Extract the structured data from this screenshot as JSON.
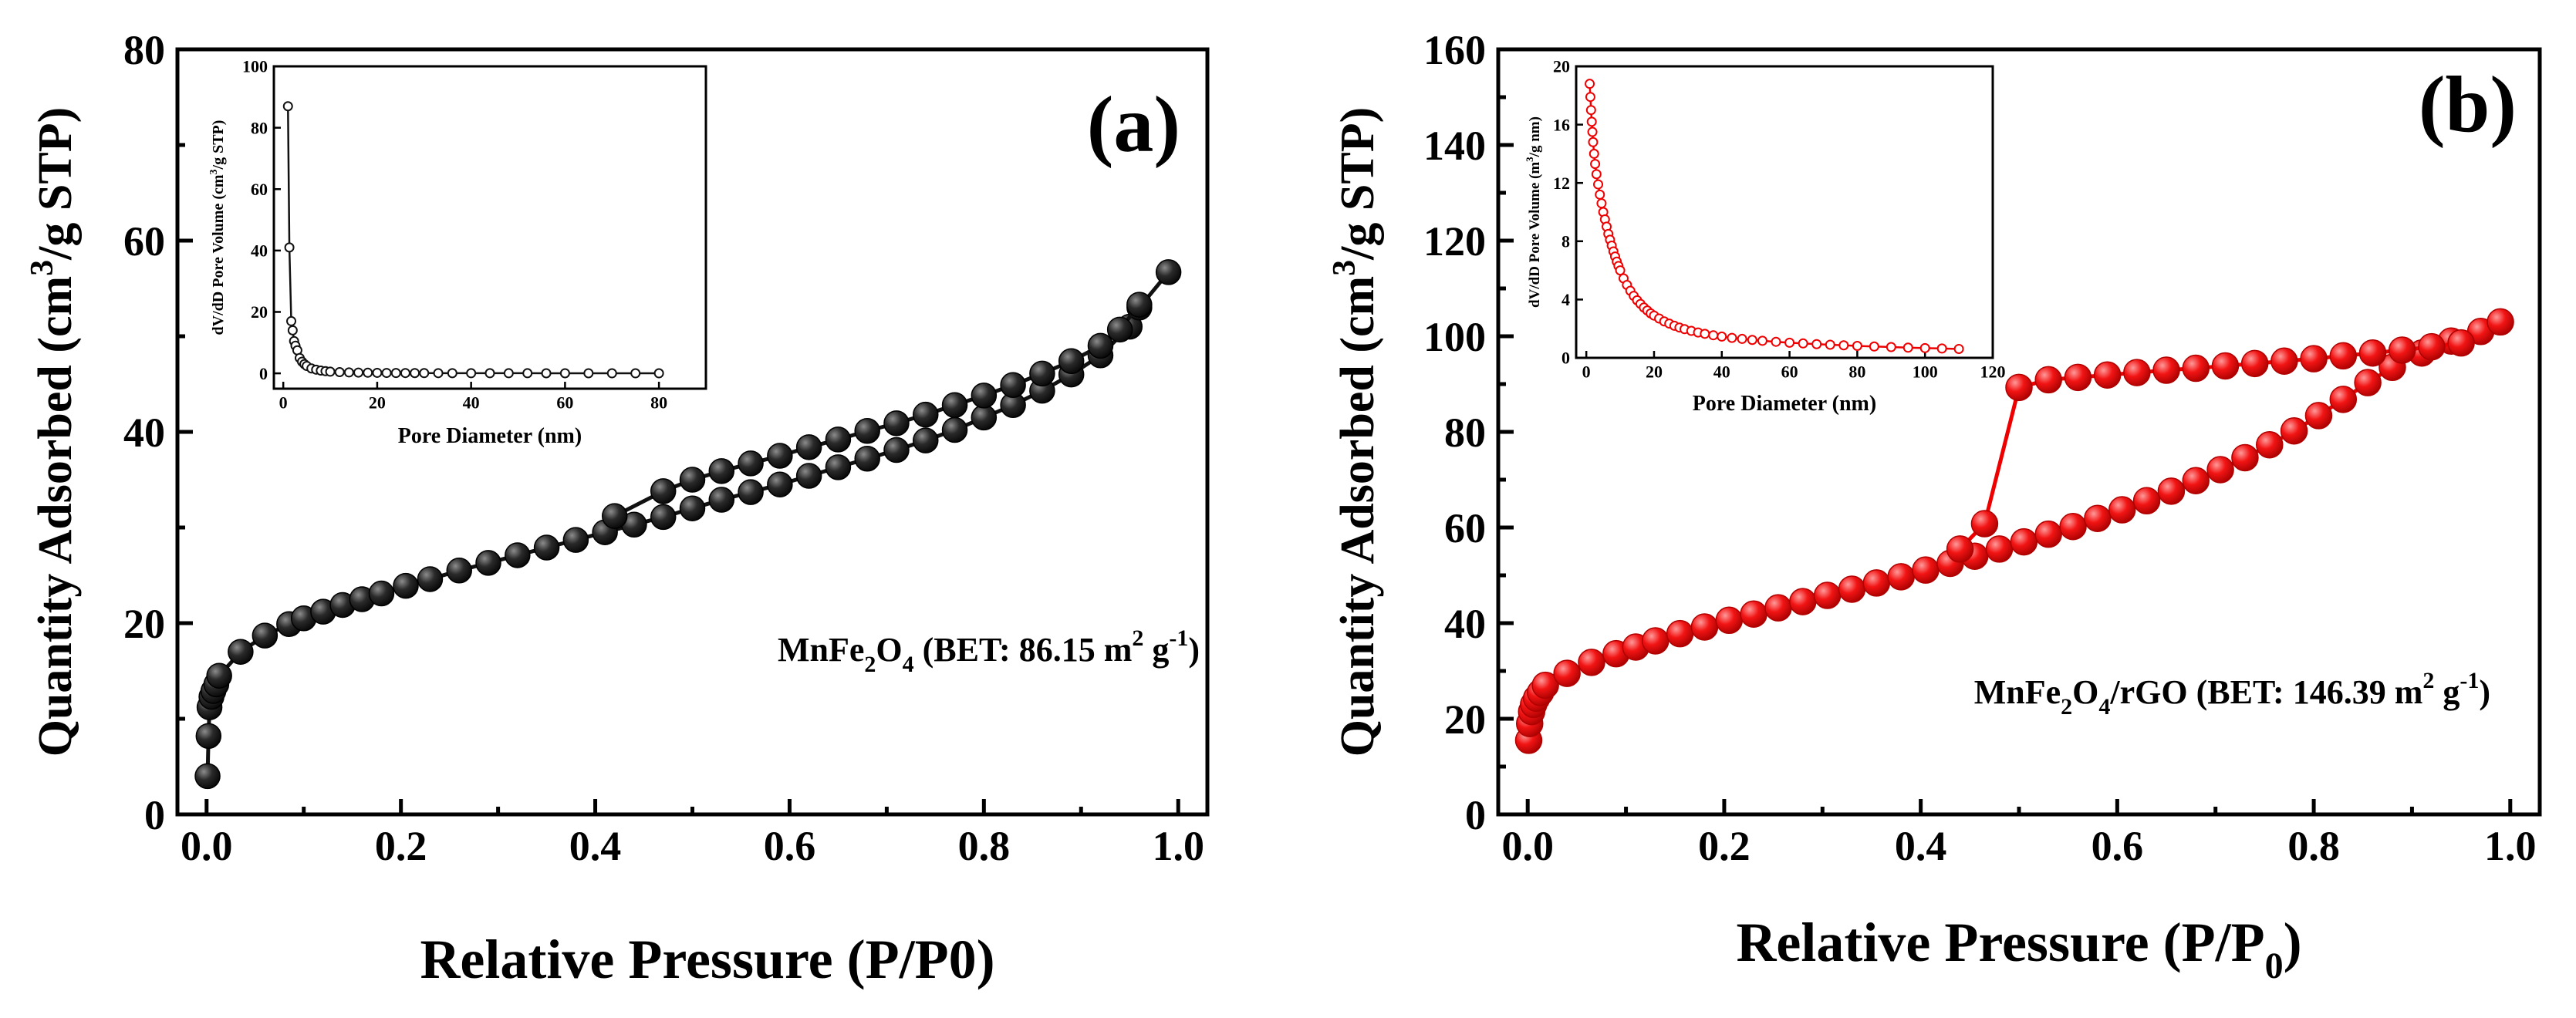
{
  "chart_data": [
    {
      "id": "a",
      "type": "scatter",
      "panel_label": "(a)",
      "xlabel": "Relative Pressure (P/P0)",
      "ylabel_parts": [
        "Quantity Adsorbed (cm",
        "3",
        "/g STP)"
      ],
      "xlim": [
        -0.03,
        1.03
      ],
      "ylim": [
        0,
        80
      ],
      "x_ticks": [
        "0.0",
        "0.2",
        "0.4",
        "0.6",
        "0.8",
        "1.0"
      ],
      "x_tick_values": [
        0,
        0.2,
        0.4,
        0.6,
        0.8,
        1.0
      ],
      "y_ticks": [
        "0",
        "20",
        "40",
        "60",
        "80"
      ],
      "y_tick_values": [
        0,
        20,
        40,
        60,
        80
      ],
      "annotation_parts": [
        "MnFe",
        "2",
        "O",
        "4",
        " (BET: 86.15 m",
        "2",
        " g",
        "-1",
        ")"
      ],
      "marker_color": "#1a1a1a",
      "series": [
        {
          "name": "adsorption",
          "x": [
            0.001,
            0.002,
            0.003,
            0.005,
            0.007,
            0.01,
            0.013,
            0.035,
            0.06,
            0.085,
            0.1,
            0.12,
            0.14,
            0.16,
            0.18,
            0.205,
            0.23,
            0.26,
            0.29,
            0.32,
            0.35,
            0.38,
            0.41,
            0.44,
            0.47,
            0.5,
            0.53,
            0.56,
            0.59,
            0.62,
            0.65,
            0.68,
            0.71,
            0.74,
            0.77,
            0.8,
            0.83,
            0.86,
            0.89,
            0.92,
            0.95,
            0.96,
            0.99
          ],
          "y": [
            4.0,
            8.2,
            11.2,
            12.3,
            12.9,
            13.6,
            14.5,
            17.0,
            18.7,
            19.9,
            20.5,
            21.2,
            21.9,
            22.5,
            23.1,
            23.9,
            24.6,
            25.5,
            26.3,
            27.1,
            27.9,
            28.7,
            29.5,
            30.3,
            31.1,
            32.0,
            32.9,
            33.7,
            34.5,
            35.4,
            36.3,
            37.2,
            38.1,
            39.1,
            40.2,
            41.5,
            42.8,
            44.3,
            46.0,
            48.0,
            51.0,
            53.0,
            56.7
          ]
        },
        {
          "name": "desorption",
          "x": [
            0.42,
            0.47,
            0.5,
            0.53,
            0.56,
            0.59,
            0.62,
            0.65,
            0.68,
            0.71,
            0.74,
            0.77,
            0.8,
            0.83,
            0.86,
            0.89,
            0.92,
            0.94,
            0.96
          ],
          "y": [
            31.2,
            33.8,
            35.0,
            35.9,
            36.7,
            37.5,
            38.4,
            39.2,
            40.1,
            40.9,
            41.8,
            42.8,
            43.8,
            44.9,
            46.1,
            47.4,
            49.0,
            50.7,
            53.3
          ]
        }
      ],
      "inset": {
        "xlabel": "Pore Diameter (nm)",
        "ylabel_parts": [
          "dV/dD Pore Volume (cm",
          "3",
          "/g STP)"
        ],
        "xlim": [
          -2,
          90
        ],
        "ylim": [
          -5,
          100
        ],
        "x_ticks": [
          "0",
          "20",
          "40",
          "60",
          "80"
        ],
        "x_tick_values": [
          0,
          20,
          40,
          60,
          80
        ],
        "y_ticks": [
          "0",
          "20",
          "40",
          "60",
          "80",
          "100"
        ],
        "y_tick_values": [
          0,
          20,
          40,
          60,
          80,
          100
        ],
        "x": [
          1.0,
          1.3,
          1.7,
          2.0,
          2.3,
          2.6,
          3.0,
          3.5,
          4.0,
          4.5,
          5.0,
          6.0,
          7.0,
          8.0,
          9.0,
          10.0,
          12.0,
          14.0,
          16.0,
          18.0,
          20.0,
          22.0,
          24.0,
          26.0,
          28.0,
          30.0,
          33.0,
          36.0,
          40.0,
          44.0,
          48.0,
          52.0,
          56.0,
          60.0,
          65.0,
          70.0,
          75.0,
          80.0
        ],
        "y": [
          87.0,
          41.0,
          17.0,
          14.0,
          10.5,
          9.0,
          7.5,
          5.0,
          3.8,
          3.0,
          2.4,
          1.6,
          1.2,
          0.9,
          0.7,
          0.55,
          0.4,
          0.3,
          0.25,
          0.2,
          0.16,
          0.13,
          0.11,
          0.1,
          0.09,
          0.08,
          0.07,
          0.06,
          0.05,
          0.05,
          0.04,
          0.04,
          0.03,
          0.03,
          0.03,
          0.02,
          0.02,
          0.02
        ]
      }
    },
    {
      "id": "b",
      "type": "scatter",
      "panel_label": "(b)",
      "xlabel_parts": [
        "Relative Pressure (P/P",
        "0",
        ")"
      ],
      "ylabel_parts": [
        "Quantity Adsorbed (cm",
        "3",
        "/g STP)"
      ],
      "xlim": [
        -0.03,
        1.03
      ],
      "ylim": [
        0,
        160
      ],
      "x_ticks": [
        "0.0",
        "0.2",
        "0.4",
        "0.6",
        "0.8",
        "1.0"
      ],
      "x_tick_values": [
        0,
        0.2,
        0.4,
        0.6,
        0.8,
        1.0
      ],
      "y_ticks": [
        "0",
        "20",
        "40",
        "60",
        "80",
        "100",
        "120",
        "140",
        "160"
      ],
      "y_tick_values": [
        0,
        20,
        40,
        60,
        80,
        100,
        120,
        140,
        160
      ],
      "annotation_parts": [
        "MnFe",
        "2",
        "O",
        "4",
        "/rGO (BET: 146.39 m",
        "2",
        " g",
        "-1",
        ")"
      ],
      "marker_color": "#ff1a1a",
      "series": [
        {
          "name": "adsorption",
          "x": [
            0.001,
            0.002,
            0.004,
            0.006,
            0.009,
            0.013,
            0.018,
            0.04,
            0.065,
            0.09,
            0.11,
            0.13,
            0.155,
            0.18,
            0.205,
            0.23,
            0.255,
            0.28,
            0.305,
            0.33,
            0.355,
            0.38,
            0.405,
            0.43,
            0.455,
            0.48,
            0.505,
            0.53,
            0.555,
            0.58,
            0.605,
            0.63,
            0.655,
            0.68,
            0.705,
            0.73,
            0.755,
            0.78,
            0.805,
            0.83,
            0.855,
            0.88,
            0.91,
            0.94,
            0.97,
            0.99
          ],
          "y": [
            15.5,
            19.0,
            21.5,
            23.0,
            24.3,
            25.5,
            27.0,
            29.5,
            31.8,
            33.6,
            35.0,
            36.3,
            37.8,
            39.2,
            40.6,
            41.9,
            43.2,
            44.5,
            45.8,
            47.1,
            48.4,
            49.7,
            51.1,
            52.5,
            54.0,
            55.5,
            57.0,
            58.6,
            60.2,
            61.9,
            63.7,
            65.6,
            67.6,
            69.8,
            72.1,
            74.6,
            77.3,
            80.2,
            83.4,
            86.8,
            90.3,
            93.5,
            96.5,
            99.0,
            101.0,
            103.0
          ]
        },
        {
          "name": "desorption",
          "x": [
            0.44,
            0.465,
            0.5,
            0.53,
            0.56,
            0.59,
            0.62,
            0.65,
            0.68,
            0.71,
            0.74,
            0.77,
            0.8,
            0.83,
            0.86,
            0.89,
            0.92,
            0.95
          ],
          "y": [
            55.5,
            60.8,
            89.3,
            90.9,
            91.4,
            91.9,
            92.4,
            92.9,
            93.3,
            93.8,
            94.3,
            94.8,
            95.3,
            95.9,
            96.5,
            97.1,
            97.8,
            98.6
          ]
        }
      ],
      "inset": {
        "xlabel": "Pore Diameter (nm)",
        "ylabel_parts": [
          "dV/dD Pore Volume (m",
          "3",
          "/g nm)"
        ],
        "xlim": [
          -3,
          120
        ],
        "ylim": [
          0,
          20
        ],
        "x_ticks": [
          "0",
          "20",
          "40",
          "60",
          "80",
          "100",
          "120"
        ],
        "x_tick_values": [
          0,
          20,
          40,
          60,
          80,
          100,
          120
        ],
        "y_ticks": [
          "0",
          "4",
          "8",
          "12",
          "16",
          "20"
        ],
        "y_tick_values": [
          0,
          4,
          8,
          12,
          16,
          20
        ],
        "x": [
          1.0,
          1.2,
          1.4,
          1.6,
          1.8,
          2.0,
          2.3,
          2.6,
          3.0,
          3.5,
          4.0,
          4.5,
          5.0,
          5.5,
          6.0,
          6.5,
          7.0,
          7.5,
          8.0,
          8.5,
          9.0,
          9.5,
          10.0,
          11.0,
          12.0,
          13.0,
          14.0,
          15.0,
          16.0,
          17.0,
          18.0,
          19.0,
          20.0,
          21.5,
          23.0,
          24.5,
          26.0,
          27.5,
          29.0,
          31.0,
          33.0,
          35.0,
          37.5,
          40.0,
          43.0,
          46.0,
          49.0,
          52.0,
          56.0,
          60.0,
          64.0,
          68.0,
          72.0,
          76.0,
          80.0,
          85.0,
          90.0,
          95.0,
          100.0,
          105.0,
          110.0
        ],
        "y": [
          18.8,
          17.9,
          17.0,
          16.2,
          15.5,
          14.8,
          14.0,
          13.3,
          12.6,
          11.9,
          11.2,
          10.6,
          10.0,
          9.5,
          9.0,
          8.5,
          8.1,
          7.7,
          7.3,
          6.95,
          6.6,
          6.3,
          6.0,
          5.45,
          5.0,
          4.6,
          4.25,
          3.95,
          3.7,
          3.45,
          3.25,
          3.05,
          2.9,
          2.7,
          2.5,
          2.35,
          2.2,
          2.08,
          1.97,
          1.85,
          1.74,
          1.65,
          1.55,
          1.46,
          1.37,
          1.3,
          1.23,
          1.17,
          1.1,
          1.04,
          0.99,
          0.94,
          0.9,
          0.86,
          0.82,
          0.78,
          0.74,
          0.7,
          0.67,
          0.64,
          0.61
        ]
      }
    }
  ]
}
